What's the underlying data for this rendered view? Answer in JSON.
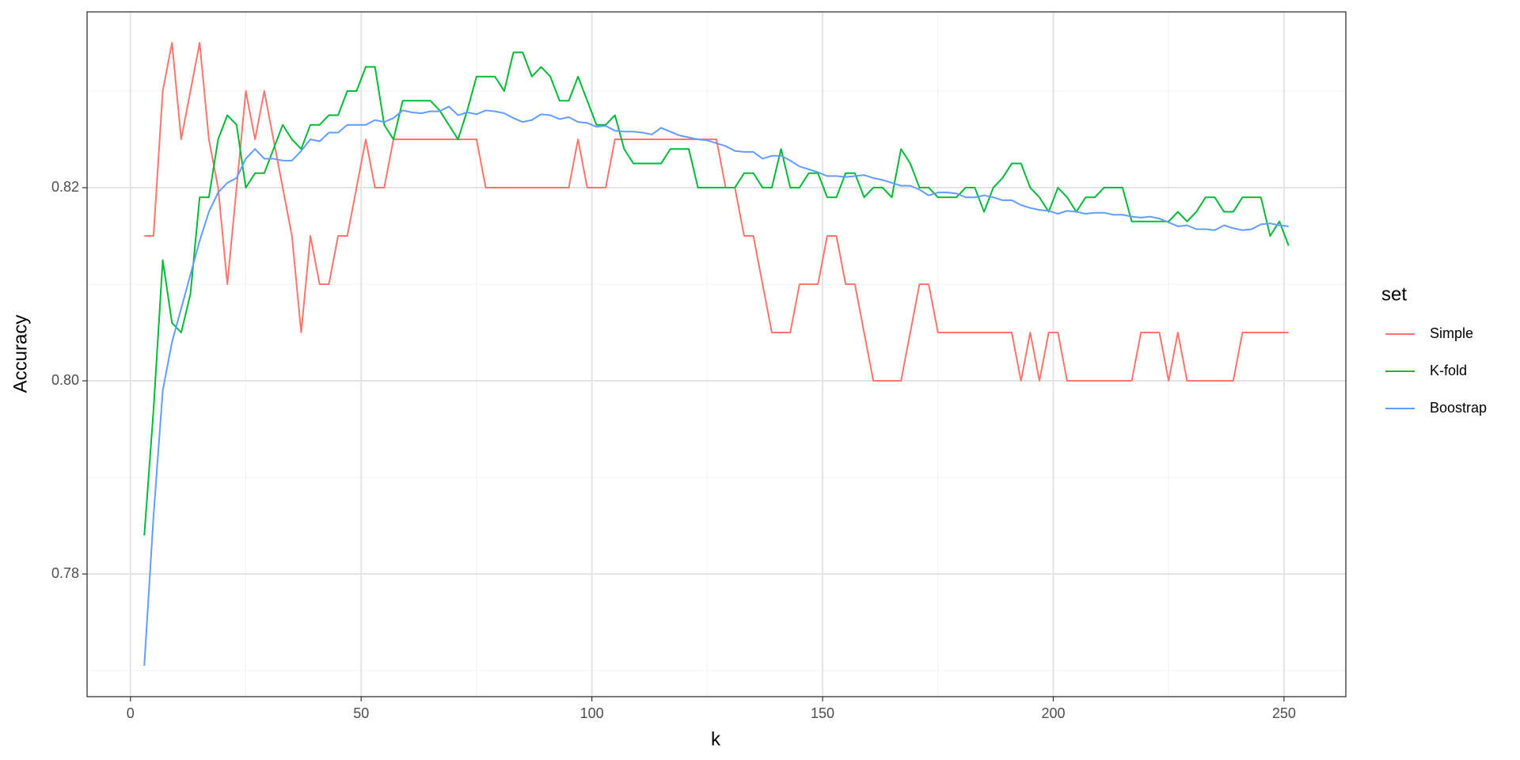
{
  "chart_data": {
    "type": "line",
    "xlabel": "k",
    "ylabel": "Accuracy",
    "legend_title": "set",
    "legend": "right",
    "grid": true,
    "x": [
      3,
      5,
      7,
      9,
      11,
      13,
      15,
      17,
      19,
      21,
      23,
      25,
      27,
      29,
      31,
      33,
      35,
      37,
      39,
      41,
      43,
      45,
      47,
      49,
      51,
      53,
      55,
      57,
      59,
      61,
      63,
      65,
      67,
      69,
      71,
      73,
      75,
      77,
      79,
      81,
      83,
      85,
      87,
      89,
      91,
      93,
      95,
      97,
      99,
      101,
      103,
      105,
      107,
      109,
      111,
      113,
      115,
      117,
      119,
      121,
      123,
      125,
      127,
      129,
      131,
      133,
      135,
      137,
      139,
      141,
      143,
      145,
      147,
      149,
      151,
      153,
      155,
      157,
      159,
      161,
      163,
      165,
      167,
      169,
      171,
      173,
      175,
      177,
      179,
      181,
      183,
      185,
      187,
      189,
      191,
      193,
      195,
      197,
      199,
      201,
      203,
      205,
      207,
      209,
      211,
      213,
      215,
      217,
      219,
      221,
      223,
      225,
      227,
      229,
      231,
      233,
      235,
      237,
      239,
      241,
      243,
      245,
      247,
      249,
      251
    ],
    "series": [
      {
        "name": "Simple",
        "color": "#F8766D",
        "values": [
          0.815,
          0.815,
          0.83,
          0.835,
          0.825,
          0.83,
          0.835,
          0.825,
          0.82,
          0.81,
          0.82,
          0.83,
          0.825,
          0.83,
          0.825,
          0.82,
          0.815,
          0.805,
          0.815,
          0.81,
          0.81,
          0.815,
          0.815,
          0.82,
          0.825,
          0.82,
          0.82,
          0.825,
          0.825,
          0.825,
          0.825,
          0.825,
          0.825,
          0.825,
          0.825,
          0.825,
          0.825,
          0.82,
          0.82,
          0.82,
          0.82,
          0.82,
          0.82,
          0.82,
          0.82,
          0.82,
          0.82,
          0.825,
          0.82,
          0.82,
          0.82,
          0.825,
          0.825,
          0.825,
          0.825,
          0.825,
          0.825,
          0.825,
          0.825,
          0.825,
          0.825,
          0.825,
          0.825,
          0.82,
          0.82,
          0.815,
          0.815,
          0.81,
          0.805,
          0.805,
          0.805,
          0.81,
          0.81,
          0.81,
          0.815,
          0.815,
          0.81,
          0.81,
          0.805,
          0.8,
          0.8,
          0.8,
          0.8,
          0.805,
          0.81,
          0.81,
          0.805,
          0.805,
          0.805,
          0.805,
          0.805,
          0.805,
          0.805,
          0.805,
          0.805,
          0.8,
          0.805,
          0.8,
          0.805,
          0.805,
          0.8,
          0.8,
          0.8,
          0.8,
          0.8,
          0.8,
          0.8,
          0.8,
          0.805,
          0.805,
          0.805,
          0.8,
          0.805,
          0.8,
          0.8,
          0.8,
          0.8,
          0.8,
          0.8,
          0.805,
          0.805,
          0.805,
          0.805,
          0.805,
          0.805
        ]
      },
      {
        "name": "K-fold",
        "color": "#00BA38",
        "values": [
          0.784,
          0.797,
          0.8125,
          0.806,
          0.805,
          0.809,
          0.819,
          0.819,
          0.825,
          0.8275,
          0.8265,
          0.82,
          0.8215,
          0.8215,
          0.824,
          0.8265,
          0.825,
          0.824,
          0.8265,
          0.8265,
          0.8275,
          0.8275,
          0.83,
          0.83,
          0.8325,
          0.8325,
          0.8265,
          0.825,
          0.829,
          0.829,
          0.829,
          0.829,
          0.828,
          0.8265,
          0.825,
          0.828,
          0.8315,
          0.8315,
          0.8315,
          0.83,
          0.834,
          0.834,
          0.8315,
          0.8325,
          0.8315,
          0.829,
          0.829,
          0.8315,
          0.829,
          0.8265,
          0.8265,
          0.8275,
          0.824,
          0.8225,
          0.8225,
          0.8225,
          0.8225,
          0.824,
          0.824,
          0.824,
          0.82,
          0.82,
          0.82,
          0.82,
          0.82,
          0.8215,
          0.8215,
          0.82,
          0.82,
          0.824,
          0.82,
          0.82,
          0.8215,
          0.8215,
          0.819,
          0.819,
          0.8215,
          0.8215,
          0.819,
          0.82,
          0.82,
          0.819,
          0.824,
          0.8225,
          0.82,
          0.82,
          0.819,
          0.819,
          0.819,
          0.82,
          0.82,
          0.8175,
          0.82,
          0.821,
          0.8225,
          0.8225,
          0.82,
          0.819,
          0.8175,
          0.82,
          0.819,
          0.8175,
          0.819,
          0.819,
          0.82,
          0.82,
          0.82,
          0.8165,
          0.8165,
          0.8165,
          0.8165,
          0.8165,
          0.8175,
          0.8165,
          0.8175,
          0.819,
          0.819,
          0.8175,
          0.8175,
          0.819,
          0.819,
          0.819,
          0.815,
          0.8165,
          0.814
        ]
      },
      {
        "name": "Boostrap",
        "color": "#619CFF",
        "values": [
          0.7705,
          0.786,
          0.799,
          0.804,
          0.8075,
          0.811,
          0.8145,
          0.8175,
          0.8195,
          0.8205,
          0.821,
          0.823,
          0.824,
          0.823,
          0.823,
          0.8228,
          0.8228,
          0.8238,
          0.825,
          0.8248,
          0.8257,
          0.8257,
          0.8265,
          0.8265,
          0.8265,
          0.827,
          0.8268,
          0.8272,
          0.828,
          0.8278,
          0.8277,
          0.8279,
          0.8279,
          0.8284,
          0.8275,
          0.8278,
          0.8276,
          0.828,
          0.8279,
          0.8277,
          0.8272,
          0.8268,
          0.827,
          0.8276,
          0.8275,
          0.8271,
          0.8273,
          0.8268,
          0.8267,
          0.8263,
          0.8264,
          0.8259,
          0.8258,
          0.8258,
          0.8257,
          0.8255,
          0.8262,
          0.8258,
          0.8254,
          0.8252,
          0.825,
          0.8249,
          0.8246,
          0.8243,
          0.8238,
          0.8237,
          0.8237,
          0.823,
          0.8233,
          0.8233,
          0.8228,
          0.8222,
          0.8219,
          0.8216,
          0.8212,
          0.8212,
          0.8211,
          0.8212,
          0.8213,
          0.821,
          0.8208,
          0.8205,
          0.8202,
          0.8202,
          0.8198,
          0.8192,
          0.8195,
          0.8195,
          0.8194,
          0.819,
          0.819,
          0.8192,
          0.819,
          0.8187,
          0.8187,
          0.8182,
          0.8179,
          0.8177,
          0.8176,
          0.8173,
          0.8176,
          0.8175,
          0.8173,
          0.8174,
          0.8174,
          0.8172,
          0.8172,
          0.817,
          0.8169,
          0.817,
          0.8168,
          0.8164,
          0.816,
          0.8161,
          0.8157,
          0.8157,
          0.8156,
          0.8161,
          0.8158,
          0.8156,
          0.8157,
          0.8162,
          0.8163,
          0.8161,
          0.816
        ]
      }
    ],
    "xlim": [
      -9.4,
      263.4
    ],
    "xticks": [
      0,
      50,
      100,
      150,
      200,
      250
    ],
    "x_minor_ticks": [
      25,
      75,
      125,
      175,
      225
    ],
    "ylim": [
      0.7673,
      0.8382
    ],
    "yticks": [
      0.78,
      {
        "value": 0.8,
        "label": "0.80"
      },
      0.82
    ],
    "y_minor_ticks": [
      0.77,
      0.79,
      0.81,
      0.83
    ]
  }
}
